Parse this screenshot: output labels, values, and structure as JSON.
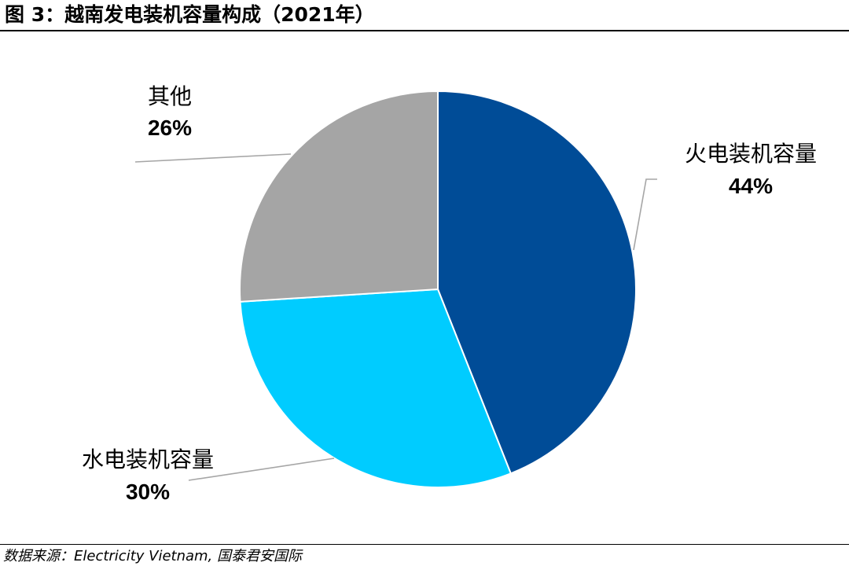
{
  "figure": {
    "title": "图 3：越南发电装机容量构成（2021年）",
    "source": "数据来源：Electricity Vietnam, 国泰君安国际"
  },
  "chart_data": {
    "type": "pie",
    "start_angle_deg": 0,
    "direction": "clockwise",
    "slices": [
      {
        "label": "火电装机容量",
        "value": 44,
        "value_label": "44%",
        "color": "#004C97"
      },
      {
        "label": "水电装机容量",
        "value": 30,
        "value_label": "30%",
        "color": "#00CCFF"
      },
      {
        "label": "其他",
        "value": 26,
        "value_label": "26%",
        "color": "#A5A5A5"
      }
    ],
    "legend": "none",
    "data_labels": "outside with leader lines"
  }
}
